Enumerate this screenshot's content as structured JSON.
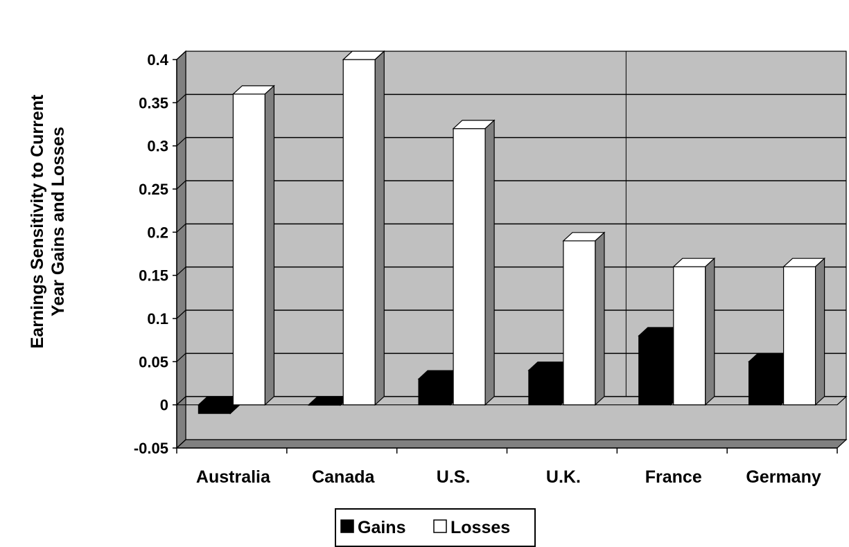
{
  "chart_data": {
    "type": "bar",
    "title": "",
    "xlabel": "",
    "ylabel_lines": [
      "Earnings Sensitivity to Current",
      "Year Gains and Losses"
    ],
    "categories": [
      "Australia",
      "Canada",
      "U.S.",
      "U.K.",
      "France",
      "Germany"
    ],
    "series": [
      {
        "name": "Gains",
        "values": [
          -0.01,
          0.0,
          0.03,
          0.04,
          0.08,
          0.05
        ],
        "color": "#000000",
        "side_color": "#000000"
      },
      {
        "name": "Losses",
        "values": [
          0.36,
          0.4,
          0.32,
          0.19,
          0.16,
          0.16
        ],
        "color": "#ffffff",
        "side_color": "#808080"
      }
    ],
    "ylim": [
      -0.05,
      0.4
    ],
    "yticks": [
      -0.05,
      0,
      0.05,
      0.1,
      0.15,
      0.2,
      0.25,
      0.3,
      0.35,
      0.4
    ],
    "ytick_labels": [
      "-0.05",
      "0",
      "0.05",
      "0.1",
      "0.15",
      "0.2",
      "0.25",
      "0.3",
      "0.35",
      "0.4"
    ],
    "grid": true,
    "legend_position": "bottom-center",
    "plot_background": "#c0c0c0",
    "style": "3d-column"
  }
}
